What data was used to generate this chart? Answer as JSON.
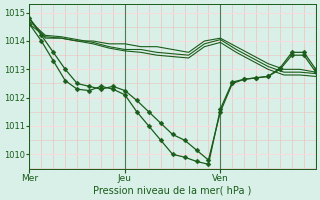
{
  "bg_color": "#d8f0e8",
  "grid_color_major": "#ffffff",
  "grid_color_minor": "#f0c0c0",
  "line_color": "#1a5c1a",
  "marker_color": "#1a5c1a",
  "xlabel": "Pression niveau de la mer( hPa )",
  "xtick_labels": [
    "Mer",
    "Jeu",
    "Ven"
  ],
  "ylim": [
    1009.5,
    1015.3
  ],
  "yticks": [
    1010,
    1011,
    1012,
    1013,
    1014,
    1015
  ],
  "series": [
    {
      "x": [
        0,
        4,
        8,
        12,
        16,
        20,
        24,
        28,
        32,
        36,
        40,
        44,
        48,
        52,
        56,
        60,
        64,
        68,
        72
      ],
      "y": [
        1014.8,
        1014.1,
        1014.1,
        1014.0,
        1014.0,
        1013.9,
        1013.9,
        1013.8,
        1013.8,
        1013.7,
        1013.6,
        1014.0,
        1014.1,
        1013.8,
        1013.5,
        1013.2,
        1013.0,
        1013.0,
        1012.9
      ],
      "marker": false
    },
    {
      "x": [
        0,
        4,
        8,
        12,
        16,
        20,
        24,
        28,
        32,
        36,
        40,
        44,
        48,
        52,
        56,
        60,
        64,
        68,
        72
      ],
      "y": [
        1014.7,
        1014.2,
        1014.15,
        1014.05,
        1013.95,
        1013.8,
        1013.7,
        1013.7,
        1013.6,
        1013.55,
        1013.5,
        1013.9,
        1014.05,
        1013.7,
        1013.4,
        1013.1,
        1012.9,
        1012.9,
        1012.85
      ],
      "marker": false
    },
    {
      "x": [
        0,
        4,
        8,
        12,
        16,
        20,
        24,
        28,
        32,
        36,
        40,
        44,
        48,
        52,
        56,
        60,
        64,
        68,
        72
      ],
      "y": [
        1014.6,
        1014.15,
        1014.1,
        1014.0,
        1013.9,
        1013.75,
        1013.65,
        1013.6,
        1013.5,
        1013.45,
        1013.4,
        1013.8,
        1013.95,
        1013.6,
        1013.3,
        1013.0,
        1012.8,
        1012.8,
        1012.75
      ],
      "marker": false
    },
    {
      "x": [
        0,
        3,
        6,
        9,
        12,
        15,
        18,
        21,
        24,
        27,
        30,
        33,
        36,
        39,
        42,
        45,
        48,
        51,
        54,
        57,
        60,
        63,
        66,
        69,
        72
      ],
      "y": [
        1014.8,
        1014.2,
        1013.6,
        1013.0,
        1012.5,
        1012.4,
        1012.3,
        1012.4,
        1012.25,
        1011.9,
        1011.5,
        1011.1,
        1010.7,
        1010.5,
        1010.15,
        1009.8,
        1011.5,
        1012.5,
        1012.65,
        1012.7,
        1012.75,
        1013.0,
        1013.5,
        1013.5,
        1012.9
      ],
      "marker": true,
      "markersize": 2.5
    },
    {
      "x": [
        0,
        3,
        6,
        9,
        12,
        15,
        18,
        21,
        24,
        27,
        30,
        33,
        36,
        39,
        42,
        45,
        48,
        51,
        54,
        57,
        60,
        63,
        66,
        69,
        72
      ],
      "y": [
        1014.6,
        1014.0,
        1013.3,
        1012.6,
        1012.3,
        1012.25,
        1012.4,
        1012.3,
        1012.1,
        1011.5,
        1011.0,
        1010.5,
        1010.0,
        1009.9,
        1009.75,
        1009.65,
        1011.6,
        1012.55,
        1012.65,
        1012.7,
        1012.75,
        1013.05,
        1013.6,
        1013.6,
        1013.0
      ],
      "marker": true,
      "markersize": 2.5
    }
  ],
  "xmin": 0,
  "xmax": 72,
  "xtick_positions": [
    0,
    24,
    48
  ],
  "day_lines": [
    0,
    24,
    48,
    72
  ]
}
